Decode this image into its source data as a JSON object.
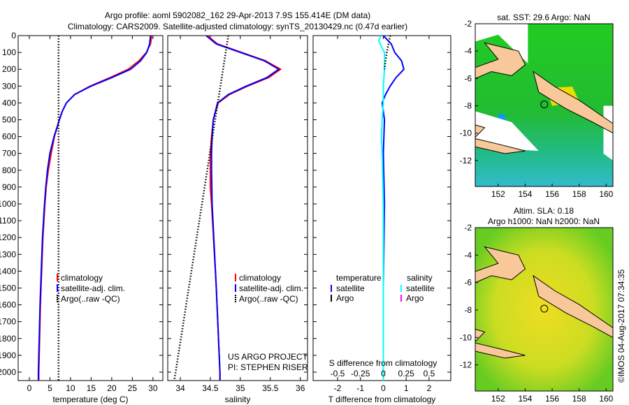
{
  "title_line1": "Argo profile: aoml 5902082_162 29-Apr-2013 7.9S 155.414E (DM data)",
  "title_line2": "Climatology: CARS2009. Satellite-adjusted climatology: synTS_20130429.nc (0.47d earlier)",
  "watermark": "©IMOS 04-Aug-2017 07:34:35",
  "colors": {
    "climatology": "#ff0000",
    "satellite": "#0000ff",
    "argo": "#000000",
    "sal_satellite": "#00ffff",
    "sal_argo": "#ff00ff"
  },
  "chart_data": [
    {
      "type": "line",
      "id": "temperature",
      "xlabel": "temperature (deg C)",
      "ylabel": "",
      "xlim": [
        -2.7,
        32.4
      ],
      "ylim": [
        2050,
        0
      ],
      "xticks": [
        0,
        5,
        10,
        15,
        20,
        25,
        30
      ],
      "yticks": [
        0,
        100,
        200,
        300,
        400,
        500,
        600,
        700,
        800,
        900,
        1000,
        1100,
        1200,
        1300,
        1400,
        1500,
        1600,
        1700,
        1800,
        1900,
        2000
      ],
      "legend": [
        "climatology",
        "satellite-adj. clim.",
        "Argo(..raw -QC)"
      ],
      "series": [
        {
          "name": "climatology",
          "depth": [
            0,
            50,
            100,
            150,
            200,
            250,
            300,
            350,
            400,
            450,
            500,
            600,
            700,
            800,
            900,
            1000,
            1200,
            1400,
            1600,
            1800,
            2000,
            2050
          ],
          "values": [
            29.7,
            29.4,
            28.4,
            26.6,
            24.0,
            19.6,
            14.8,
            11.0,
            9.0,
            8.0,
            7.3,
            6.1,
            5.3,
            4.6,
            4.1,
            3.8,
            3.3,
            3.0,
            2.7,
            2.5,
            2.3,
            2.3
          ]
        },
        {
          "name": "satellite-adj. clim.",
          "depth": [
            0,
            50,
            100,
            150,
            200,
            250,
            300,
            350,
            400,
            450,
            500,
            600,
            700,
            800,
            900,
            1000,
            1200,
            1400,
            1600,
            1800,
            2000,
            2050
          ],
          "values": [
            29.4,
            29.2,
            28.5,
            27.0,
            24.6,
            20.0,
            15.0,
            11.0,
            9.0,
            8.0,
            7.3,
            6.0,
            5.0,
            4.4,
            4.0,
            3.7,
            3.2,
            2.9,
            2.6,
            2.4,
            2.2,
            2.2
          ]
        },
        {
          "name": "Argo(..raw -QC)",
          "depth": [
            0,
            2050
          ],
          "values": [
            7.1,
            7.1
          ]
        }
      ]
    },
    {
      "type": "line",
      "id": "salinity",
      "xlabel": "salinity",
      "xlim": [
        33.79,
        36.12
      ],
      "ylim": [
        2050,
        0
      ],
      "xticks": [
        34,
        34.5,
        35,
        35.5,
        36
      ],
      "legend": [
        "climatology",
        "satellite-adj. clim.",
        "Argo(..raw -QC)"
      ],
      "annotation": [
        "US ARGO PROJECT",
        "PI: STEPHEN RISER"
      ],
      "series": [
        {
          "name": "climatology",
          "depth": [
            0,
            50,
            100,
            150,
            200,
            250,
            300,
            350,
            400,
            500,
            600,
            700,
            800,
            900,
            1000,
            1500,
            2000,
            2050
          ],
          "values": [
            34.45,
            34.62,
            35.02,
            35.42,
            35.67,
            35.47,
            35.12,
            34.82,
            34.63,
            34.55,
            34.52,
            34.5,
            34.5,
            34.5,
            34.52,
            34.6,
            34.66,
            34.66
          ]
        },
        {
          "name": "satellite-adj. clim.",
          "depth": [
            0,
            50,
            100,
            150,
            200,
            250,
            300,
            350,
            400,
            500,
            600,
            700,
            800,
            1000,
            1500,
            2000,
            2050
          ],
          "values": [
            34.43,
            34.6,
            35.0,
            35.4,
            35.64,
            35.44,
            35.1,
            34.8,
            34.62,
            34.55,
            34.53,
            34.52,
            34.52,
            34.53,
            34.6,
            34.66,
            34.66
          ]
        },
        {
          "name": "Argo(..raw -QC)",
          "depth": [
            0,
            2050
          ],
          "values": [
            34.8,
            33.9
          ]
        }
      ]
    },
    {
      "type": "line",
      "id": "difference",
      "xlabel": "T difference from climatology",
      "x2label": "S difference from climatology",
      "xlim": [
        -3.07,
        2.95
      ],
      "ylim": [
        2050,
        0
      ],
      "xticks": [
        -2,
        -1,
        0,
        1,
        2
      ],
      "x2ticks": [
        "-0.5",
        "-0.25",
        "0",
        "0.25",
        "0.5"
      ],
      "legend_titles": [
        "temperature",
        "salinity"
      ],
      "legend": [
        "satellite",
        "Argo",
        "satellite",
        "Argo"
      ],
      "series": [
        {
          "name": "T satellite",
          "depth": [
            0,
            50,
            100,
            150,
            200,
            250,
            300,
            350,
            400,
            450,
            500,
            700,
            1000,
            1500,
            2050
          ],
          "values": [
            0.0,
            0.35,
            0.5,
            0.8,
            0.9,
            0.55,
            0.3,
            0.1,
            -0.05,
            0.0,
            0.05,
            0.0,
            0.05,
            0.0,
            0.0
          ]
        },
        {
          "name": "S satellite (x4 scale T units)",
          "depth": [
            0,
            30,
            60,
            100,
            200,
            300,
            400,
            500,
            600,
            700,
            1000,
            1500,
            2050
          ],
          "values": [
            -0.1,
            -0.2,
            -0.1,
            0.05,
            0.05,
            0.0,
            0.0,
            -0.05,
            -0.08,
            -0.05,
            0.0,
            0.0,
            0.0
          ]
        },
        {
          "name": "T Argo",
          "depth": [
            0,
            100,
            200
          ],
          "values": [
            0.3,
            0.15,
            0.05
          ]
        }
      ]
    }
  ],
  "maps": [
    {
      "title": [
        "sat. SST: 29.6 Argo: NaN"
      ],
      "xticks": [
        152,
        154,
        156,
        158,
        160
      ],
      "yticks": [
        -2,
        -4,
        -6,
        -8,
        -10,
        -12
      ]
    },
    {
      "title": [
        "Altim. SLA: 0.18",
        "Argo h1000: NaN h2000: NaN"
      ],
      "xticks": [
        152,
        154,
        156,
        158,
        160
      ],
      "yticks": [
        -2,
        -4,
        -6,
        -8,
        -10,
        -12
      ]
    }
  ],
  "argo_position": {
    "lon": 155.414,
    "lat": -7.9
  }
}
